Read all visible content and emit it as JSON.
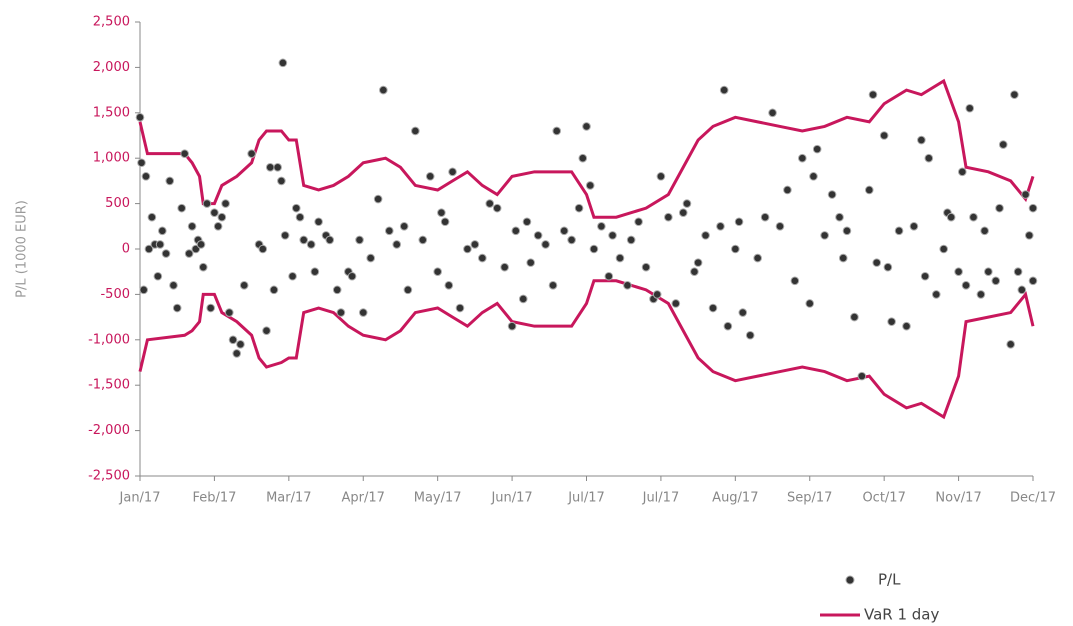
{
  "chart_data": {
    "type": "scatter-line",
    "ylabel": "P/L (1000 EUR)",
    "ylim": [
      -2500,
      2500
    ],
    "yticks": [
      {
        "value": -2500,
        "label": "-2,500"
      },
      {
        "value": -2000,
        "label": "-2,000"
      },
      {
        "value": -1500,
        "label": "-1,500"
      },
      {
        "value": -1000,
        "label": "-1,000"
      },
      -500,
      0,
      500,
      {
        "value": 1000,
        "label": "1,000"
      },
      {
        "value": 1500,
        "label": "1,500"
      },
      {
        "value": 2000,
        "label": "2,000"
      },
      {
        "value": 2500,
        "label": "2,500"
      }
    ],
    "xlim": [
      0,
      12
    ],
    "xticks": [
      {
        "value": 0,
        "label": "Jan/17"
      },
      {
        "value": 1,
        "label": "Feb/17"
      },
      {
        "value": 2,
        "label": "Mar/17"
      },
      {
        "value": 3,
        "label": "Apr/17"
      },
      {
        "value": 4,
        "label": "May/17"
      },
      {
        "value": 5,
        "label": "Jun/17"
      },
      {
        "value": 6,
        "label": "Jul/17"
      },
      {
        "value": 7,
        "label": "Jul/17"
      },
      {
        "value": 8,
        "label": "Aug/17"
      },
      {
        "value": 9,
        "label": "Sep/17"
      },
      {
        "value": 10,
        "label": "Oct/17"
      },
      {
        "value": 11,
        "label": "Nov/17"
      },
      {
        "value": 12,
        "label": "Dec/17"
      }
    ],
    "series": [
      {
        "name": "P/L",
        "type": "scatter",
        "color": "#333333",
        "x": [
          0.0,
          0.02,
          0.05,
          0.08,
          0.12,
          0.16,
          0.2,
          0.24,
          0.27,
          0.3,
          0.35,
          0.4,
          0.45,
          0.5,
          0.56,
          0.6,
          0.66,
          0.7,
          0.75,
          0.78,
          0.82,
          0.85,
          0.9,
          0.95,
          1.0,
          1.05,
          1.1,
          1.15,
          1.2,
          1.25,
          1.3,
          1.35,
          1.4,
          1.5,
          1.6,
          1.65,
          1.7,
          1.75,
          1.8,
          1.85,
          1.9,
          1.92,
          1.95,
          2.05,
          2.1,
          2.15,
          2.2,
          2.3,
          2.35,
          2.4,
          2.5,
          2.55,
          2.65,
          2.7,
          2.8,
          2.85,
          2.95,
          3.0,
          3.1,
          3.2,
          3.27,
          3.35,
          3.45,
          3.55,
          3.6,
          3.7,
          3.8,
          3.9,
          4.0,
          4.05,
          4.1,
          4.15,
          4.2,
          4.3,
          4.4,
          4.5,
          4.6,
          4.7,
          4.8,
          4.9,
          5.0,
          5.05,
          5.15,
          5.2,
          5.25,
          5.35,
          5.45,
          5.55,
          5.6,
          5.7,
          5.8,
          5.9,
          5.95,
          6.0,
          6.05,
          6.1,
          6.2,
          6.3,
          6.35,
          6.45,
          6.55,
          6.6,
          6.7,
          6.8,
          6.9,
          6.95,
          7.0,
          7.1,
          7.2,
          7.3,
          7.35,
          7.45,
          7.5,
          7.6,
          7.7,
          7.8,
          7.85,
          7.9,
          8.0,
          8.05,
          8.1,
          8.2,
          8.3,
          8.4,
          8.5,
          8.6,
          8.7,
          8.8,
          8.9,
          9.0,
          9.05,
          9.1,
          9.2,
          9.3,
          9.4,
          9.45,
          9.5,
          9.6,
          9.7,
          9.8,
          9.85,
          9.9,
          10.0,
          10.05,
          10.1,
          10.2,
          10.3,
          10.4,
          10.5,
          10.55,
          10.6,
          10.7,
          10.8,
          10.85,
          10.9,
          11.0,
          11.05,
          11.1,
          11.15,
          11.2,
          11.3,
          11.35,
          11.4,
          11.5,
          11.55,
          11.6,
          11.7,
          11.75,
          11.8,
          11.85,
          11.9,
          11.95,
          12.0,
          12.0
        ],
        "values": [
          1450,
          950,
          -450,
          800,
          0,
          350,
          50,
          -300,
          50,
          200,
          -50,
          750,
          -400,
          -650,
          450,
          1050,
          -50,
          250,
          0,
          100,
          50,
          -200,
          500,
          -650,
          400,
          250,
          350,
          500,
          -700,
          -1000,
          -1150,
          -1050,
          -400,
          1050,
          50,
          0,
          -900,
          900,
          -450,
          900,
          750,
          2050,
          150,
          -300,
          450,
          350,
          100,
          50,
          -250,
          300,
          150,
          100,
          -450,
          -700,
          -250,
          -300,
          100,
          -700,
          -100,
          550,
          1750,
          200,
          50,
          250,
          -450,
          1300,
          100,
          800,
          -250,
          400,
          300,
          -400,
          850,
          -650,
          0,
          50,
          -100,
          500,
          450,
          -200,
          -850,
          200,
          -550,
          300,
          -150,
          150,
          50,
          -400,
          1300,
          200,
          100,
          450,
          1000,
          1350,
          700,
          0,
          250,
          -300,
          150,
          -100,
          -400,
          100,
          300,
          -200,
          -550,
          -500,
          800,
          350,
          -600,
          400,
          500,
          -250,
          -150,
          150,
          -650,
          250,
          1750,
          -850,
          0,
          300,
          -700,
          -950,
          -100,
          350,
          1500,
          250,
          650,
          -350,
          1000,
          -600,
          800,
          1100,
          150,
          600,
          350,
          -100,
          200,
          -750,
          -1400,
          650,
          1700,
          -150,
          1250,
          -200,
          -800,
          200,
          -850,
          250,
          1200,
          -300,
          1000,
          -500,
          0,
          400,
          350,
          -250,
          850,
          -400,
          1550,
          350,
          -500,
          200,
          -250,
          -350,
          450,
          1150,
          -1050,
          1700,
          -250,
          -450,
          600,
          150,
          450,
          -350
        ]
      },
      {
        "name": "VaR 1 day",
        "type": "line",
        "color": "#c8175c",
        "x": [
          0,
          0.1,
          0.6,
          0.7,
          0.8,
          0.85,
          1.0,
          1.1,
          1.3,
          1.5,
          1.6,
          1.7,
          1.9,
          2.0,
          2.1,
          2.2,
          2.4,
          2.6,
          2.8,
          3.0,
          3.3,
          3.5,
          3.7,
          4.0,
          4.2,
          4.4,
          4.6,
          4.8,
          5.0,
          5.3,
          5.8,
          6.0,
          6.1,
          6.4,
          6.8,
          7.1,
          7.3,
          7.5,
          7.7,
          8.0,
          8.3,
          8.6,
          8.9,
          9.2,
          9.5,
          9.8,
          10.0,
          10.3,
          10.5,
          10.8,
          11.0,
          11.1,
          11.4,
          11.7,
          11.9,
          12.0
        ],
        "values": [
          1400,
          1050,
          1050,
          950,
          800,
          500,
          500,
          700,
          800,
          950,
          1200,
          1300,
          1300,
          1200,
          1200,
          700,
          650,
          700,
          800,
          950,
          1000,
          900,
          700,
          650,
          750,
          850,
          700,
          600,
          800,
          850,
          850,
          600,
          350,
          350,
          450,
          600,
          900,
          1200,
          1350,
          1450,
          1400,
          1350,
          1300,
          1350,
          1450,
          1400,
          1600,
          1750,
          1700,
          1850,
          1400,
          900,
          850,
          750,
          550,
          800
        ],
        "lower": [
          -1350,
          -1000,
          -950,
          -900,
          -800,
          -500,
          -500,
          -700,
          -800,
          -950,
          -1200,
          -1300,
          -1250,
          -1200,
          -1200,
          -700,
          -650,
          -700,
          -850,
          -950,
          -1000,
          -900,
          -700,
          -650,
          -750,
          -850,
          -700,
          -600,
          -800,
          -850,
          -850,
          -600,
          -350,
          -350,
          -450,
          -600,
          -900,
          -1200,
          -1350,
          -1450,
          -1400,
          -1350,
          -1300,
          -1350,
          -1450,
          -1400,
          -1600,
          -1750,
          -1700,
          -1850,
          -1400,
          -800,
          -750,
          -700,
          -500,
          -850
        ]
      }
    ]
  }
}
